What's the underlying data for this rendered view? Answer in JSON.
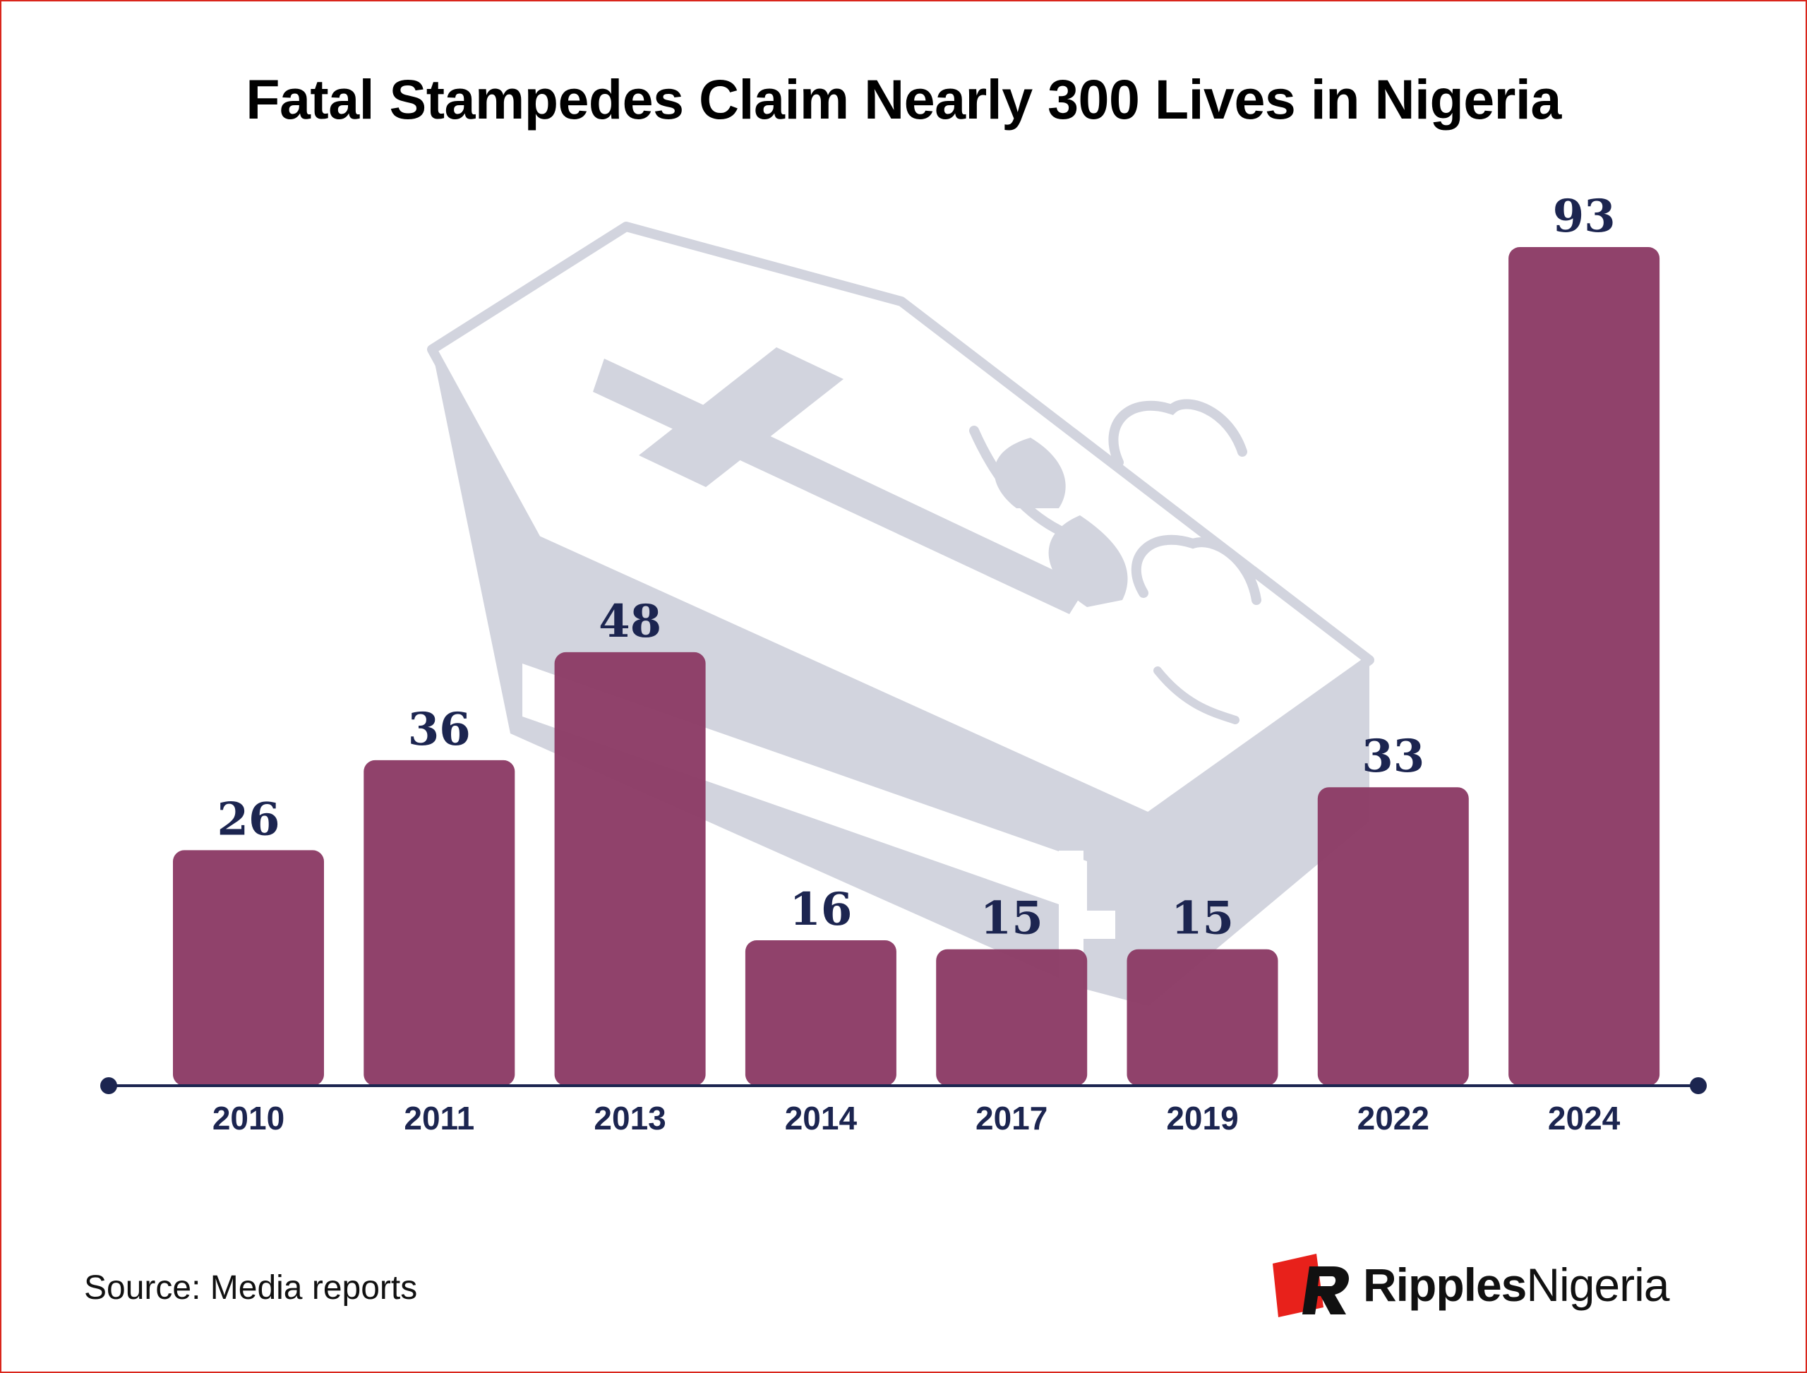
{
  "title": "Fatal Stampedes Claim Nearly 300 Lives in Nigeria",
  "source": "Source: Media reports",
  "logo": {
    "part1": "Ripples",
    "part2": "Nigeria"
  },
  "colors": {
    "bar": "#8b3a65",
    "axis": "#1c2550",
    "label": "#1c2550",
    "watermark": "#d2d4de",
    "logo_red": "#e8211b"
  },
  "background_icon": "coffin-with-cross-and-flower-icon",
  "chart_data": {
    "type": "bar",
    "title": "Fatal Stampedes Claim Nearly 300 Lives in Nigeria",
    "categories": [
      "2010",
      "2011",
      "2013",
      "2014",
      "2017",
      "2019",
      "2022",
      "2024"
    ],
    "values": [
      26,
      36,
      48,
      16,
      15,
      15,
      33,
      93
    ],
    "xlabel": "",
    "ylabel": "",
    "ylim": [
      0,
      93
    ],
    "grid": false,
    "legend": "none",
    "data_labels": true
  }
}
